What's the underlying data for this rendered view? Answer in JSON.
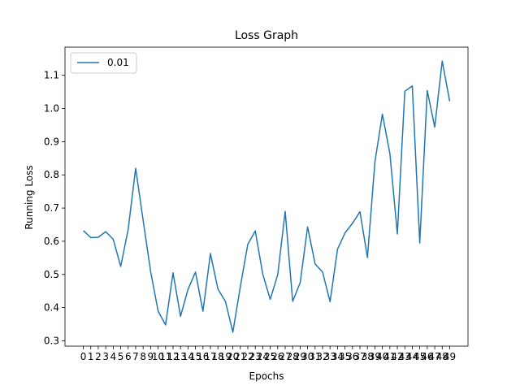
{
  "chart_data": {
    "type": "line",
    "title": "Loss Graph",
    "xlabel": "Epochs",
    "ylabel": "Running Loss",
    "x": [
      0,
      1,
      2,
      3,
      4,
      5,
      6,
      7,
      8,
      9,
      10,
      11,
      12,
      13,
      14,
      15,
      16,
      17,
      18,
      19,
      20,
      21,
      22,
      23,
      24,
      25,
      26,
      27,
      28,
      29,
      30,
      31,
      32,
      33,
      34,
      35,
      36,
      37,
      38,
      39,
      40,
      41,
      42,
      43,
      44,
      45,
      46,
      47,
      48,
      49
    ],
    "x_tick_labels": [
      "0",
      "1",
      "2",
      "3",
      "4",
      "5",
      "6",
      "7",
      "8",
      "9",
      "10",
      "11",
      "12",
      "13",
      "14",
      "15",
      "16",
      "17",
      "18",
      "19",
      "20",
      "21",
      "22",
      "23",
      "24",
      "25",
      "26",
      "27",
      "28",
      "29",
      "30",
      "31",
      "32",
      "33",
      "34",
      "35",
      "36",
      "37",
      "38",
      "39",
      "40",
      "41",
      "42",
      "43",
      "44",
      "45",
      "46",
      "47",
      "48",
      "49"
    ],
    "y_ticks": [
      0.3,
      0.4,
      0.5,
      0.6,
      0.7,
      0.8,
      0.9,
      1.0,
      1.1
    ],
    "y_tick_labels": [
      "0.3",
      "0.4",
      "0.5",
      "0.6",
      "0.7",
      "0.8",
      "0.9",
      "1.0",
      "1.1"
    ],
    "xlim": [
      -2.45,
      51.45
    ],
    "ylim": [
      0.284,
      1.185
    ],
    "grid": false,
    "legend_position": "top-left",
    "series": [
      {
        "name": "0.01",
        "color": "#1f77b4",
        "values": [
          0.632,
          0.611,
          0.612,
          0.629,
          0.606,
          0.524,
          0.636,
          0.82,
          0.663,
          0.509,
          0.39,
          0.348,
          0.505,
          0.374,
          0.455,
          0.507,
          0.389,
          0.563,
          0.456,
          0.419,
          0.326,
          0.463,
          0.591,
          0.631,
          0.501,
          0.425,
          0.499,
          0.69,
          0.419,
          0.475,
          0.643,
          0.532,
          0.507,
          0.418,
          0.576,
          0.625,
          0.654,
          0.689,
          0.551,
          0.839,
          0.983,
          0.865,
          0.622,
          1.052,
          1.068,
          0.595,
          1.054,
          0.944,
          1.143,
          1.022
        ]
      }
    ]
  }
}
